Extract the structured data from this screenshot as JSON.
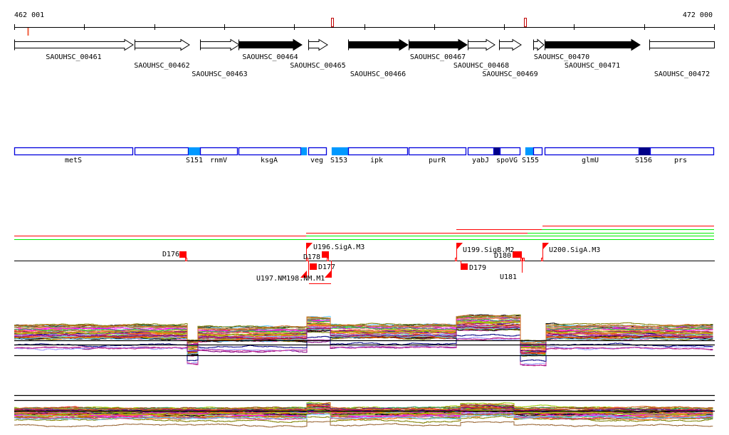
{
  "ruler": {
    "start_label": "462 001",
    "end_label": "472 000"
  },
  "genes": [
    {
      "name": "SAOUHSC_00461",
      "filled": false
    },
    {
      "name": "SAOUHSC_00462",
      "filled": false
    },
    {
      "name": "SAOUHSC_00463",
      "filled": false
    },
    {
      "name": "SAOUHSC_00464",
      "filled": true
    },
    {
      "name": "SAOUHSC_00465",
      "filled": false
    },
    {
      "name": "SAOUHSC_00466",
      "filled": true
    },
    {
      "name": "SAOUHSC_00467",
      "filled": true
    },
    {
      "name": "SAOUHSC_00468",
      "filled": false
    },
    {
      "name": "SAOUHSC_00469",
      "filled": false
    },
    {
      "name": "SAOUHSC_00470",
      "filled": false
    },
    {
      "name": "SAOUHSC_00471",
      "filled": true
    },
    {
      "name": "SAOUHSC_00472",
      "filled": false
    }
  ],
  "annotations": [
    {
      "label": "metS",
      "kind": "gene"
    },
    {
      "label": "",
      "kind": "gene"
    },
    {
      "label": "S151",
      "kind": "light"
    },
    {
      "label": "rnmV",
      "kind": "gene"
    },
    {
      "label": "ksgA",
      "kind": "gene"
    },
    {
      "label": "",
      "kind": "light"
    },
    {
      "label": "veg",
      "kind": "gene"
    },
    {
      "label": "S153",
      "kind": "light"
    },
    {
      "label": "ipk",
      "kind": "gene"
    },
    {
      "label": "purR",
      "kind": "gene"
    },
    {
      "label": "yabJ",
      "kind": "gene"
    },
    {
      "label": "",
      "kind": "dark"
    },
    {
      "label": "spoVG",
      "kind": "gene"
    },
    {
      "label": "S155",
      "kind": "light"
    },
    {
      "label": "",
      "kind": "gene"
    },
    {
      "label": "glmU",
      "kind": "gene"
    },
    {
      "label": "S156",
      "kind": "dark"
    },
    {
      "label": "prs",
      "kind": "gene"
    }
  ],
  "features": {
    "d176": "D176",
    "u196": "U196.SigA.M3",
    "d178": "D178",
    "d177": "D177",
    "u197": "U197.NM198.NM.M1",
    "u199": "U199.SigB.M2",
    "d179": "D179",
    "d180": "D180",
    "u181": "U181",
    "u200": "U200.SigA.M3"
  },
  "colors": {
    "gene_outline": "#0000dd",
    "light_fill": "#0099ff",
    "dark_fill": "#000088",
    "red": "#ff0000",
    "green": "#00ee00",
    "marker": "#ff0000"
  }
}
